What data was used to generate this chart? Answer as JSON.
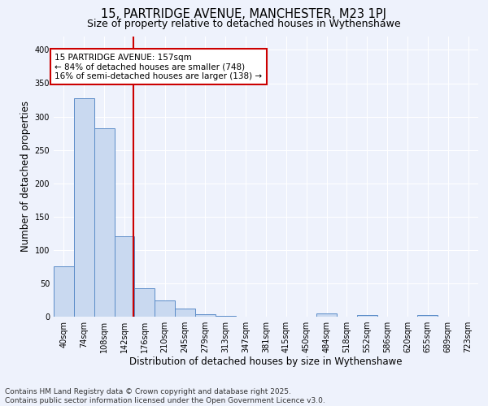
{
  "title1": "15, PARTRIDGE AVENUE, MANCHESTER, M23 1PJ",
  "title2": "Size of property relative to detached houses in Wythenshawe",
  "xlabel": "Distribution of detached houses by size in Wythenshawe",
  "ylabel": "Number of detached properties",
  "categories": [
    "40sqm",
    "74sqm",
    "108sqm",
    "142sqm",
    "176sqm",
    "210sqm",
    "245sqm",
    "279sqm",
    "313sqm",
    "347sqm",
    "381sqm",
    "415sqm",
    "450sqm",
    "484sqm",
    "518sqm",
    "552sqm",
    "586sqm",
    "620sqm",
    "655sqm",
    "689sqm",
    "723sqm"
  ],
  "values": [
    75,
    328,
    283,
    120,
    43,
    24,
    12,
    4,
    1,
    0,
    0,
    0,
    0,
    5,
    0,
    2,
    0,
    0,
    2,
    0,
    0
  ],
  "bar_color": "#c9d9f0",
  "bar_edge_color": "#5b8cc8",
  "annotation_line1": "15 PARTRIDGE AVENUE: 157sqm",
  "annotation_line2": "← 84% of detached houses are smaller (748)",
  "annotation_line3": "16% of semi-detached houses are larger (138) →",
  "annotation_box_color": "#ffffff",
  "annotation_box_edge": "#cc0000",
  "vline_color": "#cc0000",
  "vline_x": 3.43,
  "ylim": [
    0,
    420
  ],
  "yticks": [
    0,
    50,
    100,
    150,
    200,
    250,
    300,
    350,
    400
  ],
  "bg_color": "#eef2fc",
  "footer1": "Contains HM Land Registry data © Crown copyright and database right 2025.",
  "footer2": "Contains public sector information licensed under the Open Government Licence v3.0.",
  "title_fontsize": 10.5,
  "subtitle_fontsize": 9,
  "axis_label_fontsize": 8.5,
  "tick_fontsize": 7,
  "annotation_fontsize": 7.5,
  "footer_fontsize": 6.5
}
